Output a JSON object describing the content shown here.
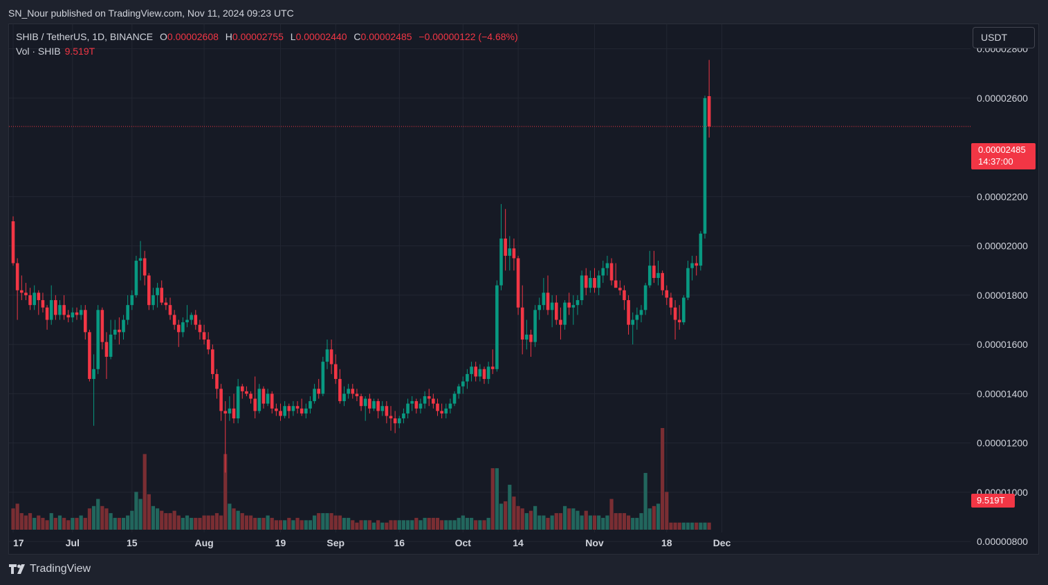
{
  "header": {
    "credit": "SN_Nour published on TradingView.com, Nov 11, 2024 09:23 UTC"
  },
  "legend": {
    "symbol": "SHIB / TetherUS, 1D, BINANCE",
    "open_label": "O",
    "open": "0.00002608",
    "high_label": "H",
    "high": "0.00002755",
    "low_label": "L",
    "low": "0.00002440",
    "close_label": "C",
    "close": "0.00002485",
    "change": "−0.00000122 (−4.68%)",
    "volume_label": "Vol · SHIB",
    "volume": "9.519T"
  },
  "currency_button": "USDT",
  "last_price": {
    "price": "0.00002485",
    "countdown": "14:37:00"
  },
  "volume_tag": "9.519T",
  "brand": "TradingView",
  "colors": {
    "up": "#089981",
    "down": "#f23645",
    "up_vol": "#22665d",
    "down_vol": "#7a2e33",
    "background": "#161a25",
    "grid": "#232733"
  },
  "chart_data": {
    "type": "candlestick",
    "title": "SHIB / TetherUS, 1D, BINANCE",
    "y_axis": {
      "ticks": [
        "0.00002800",
        "0.00002600",
        "0.00002200",
        "0.00002000",
        "0.00001800",
        "0.00001600",
        "0.00001400",
        "0.00001200",
        "0.00001000",
        "0.00000800"
      ],
      "range": [
        7.5e-06,
        2.9e-05
      ]
    },
    "x_axis": {
      "ticks": [
        {
          "label": "17",
          "day": 0
        },
        {
          "label": "Jul",
          "day": 14
        },
        {
          "label": "15",
          "day": 28
        },
        {
          "label": "Aug",
          "day": 45
        },
        {
          "label": "19",
          "day": 63
        },
        {
          "label": "Sep",
          "day": 76
        },
        {
          "label": "16",
          "day": 91
        },
        {
          "label": "Oct",
          "day": 106
        },
        {
          "label": "14",
          "day": 119
        },
        {
          "label": "Nov",
          "day": 137
        },
        {
          "label": "18",
          "day": 154
        },
        {
          "label": "Dec",
          "day": 167
        }
      ],
      "first_date": "2024-06-17"
    },
    "candles": [
      [
        2.1e-05,
        2.12e-05,
        1.92e-05,
        1.93e-05
      ],
      [
        1.93e-05,
        1.95e-05,
        1.7e-05,
        1.82e-05
      ],
      [
        1.82e-05,
        1.88e-05,
        1.78e-05,
        1.81e-05
      ],
      [
        1.81e-05,
        1.85e-05,
        1.78e-05,
        1.8e-05
      ],
      [
        1.8e-05,
        1.83e-05,
        1.74e-05,
        1.76e-05
      ],
      [
        1.76e-05,
        1.84e-05,
        1.74e-05,
        1.81e-05
      ],
      [
        1.81e-05,
        1.82e-05,
        1.72e-05,
        1.78e-05
      ],
      [
        1.78e-05,
        1.81e-05,
        1.73e-05,
        1.75e-05
      ],
      [
        1.75e-05,
        1.76e-05,
        1.66e-05,
        1.7e-05
      ],
      [
        1.7e-05,
        1.84e-05,
        1.68e-05,
        1.78e-05
      ],
      [
        1.78e-05,
        1.8e-05,
        1.7e-05,
        1.72e-05
      ],
      [
        1.72e-05,
        1.78e-05,
        1.7e-05,
        1.76e-05
      ],
      [
        1.76e-05,
        1.8e-05,
        1.7e-05,
        1.72e-05
      ],
      [
        1.72e-05,
        1.74e-05,
        1.69e-05,
        1.71e-05
      ],
      [
        1.71e-05,
        1.75e-05,
        1.69e-05,
        1.73e-05
      ],
      [
        1.73e-05,
        1.75e-05,
        1.7e-05,
        1.72e-05
      ],
      [
        1.72e-05,
        1.76e-05,
        1.7e-05,
        1.74e-05
      ],
      [
        1.74e-05,
        1.76e-05,
        1.62e-05,
        1.65e-05
      ],
      [
        1.65e-05,
        1.66e-05,
        1.45e-05,
        1.46e-05
      ],
      [
        1.46e-05,
        1.56e-05,
        1.27e-05,
        1.5e-05
      ],
      [
        1.5e-05,
        1.76e-05,
        1.48e-05,
        1.74e-05
      ],
      [
        1.74e-05,
        1.75e-05,
        1.58e-05,
        1.61e-05
      ],
      [
        1.61e-05,
        1.65e-05,
        1.46e-05,
        1.55e-05
      ],
      [
        1.55e-05,
        1.7e-05,
        1.54e-05,
        1.64e-05
      ],
      [
        1.64e-05,
        1.7e-05,
        1.62e-05,
        1.66e-05
      ],
      [
        1.66e-05,
        1.71e-05,
        1.6e-05,
        1.65e-05
      ],
      [
        1.65e-05,
        1.72e-05,
        1.62e-05,
        1.7e-05
      ],
      [
        1.7e-05,
        1.8e-05,
        1.68e-05,
        1.76e-05
      ],
      [
        1.76e-05,
        1.82e-05,
        1.74e-05,
        1.8e-05
      ],
      [
        1.8e-05,
        1.96e-05,
        1.79e-05,
        1.94e-05
      ],
      [
        1.94e-05,
        2.02e-05,
        1.86e-05,
        1.95e-05
      ],
      [
        1.95e-05,
        1.98e-05,
        1.84e-05,
        1.88e-05
      ],
      [
        1.88e-05,
        1.89e-05,
        1.74e-05,
        1.76e-05
      ],
      [
        1.76e-05,
        1.83e-05,
        1.74e-05,
        1.8e-05
      ],
      [
        1.8e-05,
        1.85e-05,
        1.75e-05,
        1.83e-05
      ],
      [
        1.83e-05,
        1.86e-05,
        1.76e-05,
        1.77e-05
      ],
      [
        1.77e-05,
        1.79e-05,
        1.74e-05,
        1.76e-05
      ],
      [
        1.76e-05,
        1.79e-05,
        1.7e-05,
        1.72e-05
      ],
      [
        1.72e-05,
        1.74e-05,
        1.66e-05,
        1.68e-05
      ],
      [
        1.68e-05,
        1.7e-05,
        1.59e-05,
        1.65e-05
      ],
      [
        1.65e-05,
        1.71e-05,
        1.63e-05,
        1.69e-05
      ],
      [
        1.69e-05,
        1.76e-05,
        1.67e-05,
        1.7e-05
      ],
      [
        1.7e-05,
        1.73e-05,
        1.68e-05,
        1.72e-05
      ],
      [
        1.72e-05,
        1.74e-05,
        1.66e-05,
        1.68e-05
      ],
      [
        1.68e-05,
        1.7e-05,
        1.62e-05,
        1.65e-05
      ],
      [
        1.65e-05,
        1.68e-05,
        1.6e-05,
        1.62e-05
      ],
      [
        1.62e-05,
        1.65e-05,
        1.56e-05,
        1.58e-05
      ],
      [
        1.58e-05,
        1.6e-05,
        1.46e-05,
        1.48e-05
      ],
      [
        1.48e-05,
        1.5e-05,
        1.38e-05,
        1.42e-05
      ],
      [
        1.42e-05,
        1.44e-05,
        1.29e-05,
        1.33e-05
      ],
      [
        1.33e-05,
        1.37e-05,
        1.08e-05,
        1.32e-05
      ],
      [
        1.32e-05,
        1.39e-05,
        1.29e-05,
        1.34e-05
      ],
      [
        1.34e-05,
        1.4e-05,
        1.28e-05,
        1.3e-05
      ],
      [
        1.3e-05,
        1.46e-05,
        1.28e-05,
        1.43e-05
      ],
      [
        1.43e-05,
        1.44e-05,
        1.38e-05,
        1.41e-05
      ],
      [
        1.41e-05,
        1.43e-05,
        1.39e-05,
        1.4e-05
      ],
      [
        1.4e-05,
        1.41e-05,
        1.36e-05,
        1.38e-05
      ],
      [
        1.38e-05,
        1.47e-05,
        1.3e-05,
        1.33e-05
      ],
      [
        1.33e-05,
        1.44e-05,
        1.32e-05,
        1.42e-05
      ],
      [
        1.42e-05,
        1.43e-05,
        1.34e-05,
        1.36e-05
      ],
      [
        1.36e-05,
        1.42e-05,
        1.35e-05,
        1.4e-05
      ],
      [
        1.4e-05,
        1.41e-05,
        1.32e-05,
        1.34e-05
      ],
      [
        1.34e-05,
        1.36e-05,
        1.31e-05,
        1.33e-05
      ],
      [
        1.33e-05,
        1.36e-05,
        1.29e-05,
        1.31e-05
      ],
      [
        1.31e-05,
        1.37e-05,
        1.3e-05,
        1.35e-05
      ],
      [
        1.35e-05,
        1.36e-05,
        1.3e-05,
        1.33e-05
      ],
      [
        1.33e-05,
        1.37e-05,
        1.31e-05,
        1.35e-05
      ],
      [
        1.35e-05,
        1.37e-05,
        1.32e-05,
        1.34e-05
      ],
      [
        1.34e-05,
        1.38e-05,
        1.31e-05,
        1.32e-05
      ],
      [
        1.32e-05,
        1.36e-05,
        1.3e-05,
        1.34e-05
      ],
      [
        1.34e-05,
        1.39e-05,
        1.32e-05,
        1.37e-05
      ],
      [
        1.37e-05,
        1.44e-05,
        1.36e-05,
        1.42e-05
      ],
      [
        1.42e-05,
        1.46e-05,
        1.38e-05,
        1.4e-05
      ],
      [
        1.4e-05,
        1.55e-05,
        1.39e-05,
        1.53e-05
      ],
      [
        1.53e-05,
        1.62e-05,
        1.5e-05,
        1.58e-05
      ],
      [
        1.58e-05,
        1.62e-05,
        1.48e-05,
        1.52e-05
      ],
      [
        1.52e-05,
        1.56e-05,
        1.44e-05,
        1.46e-05
      ],
      [
        1.46e-05,
        1.5e-05,
        1.36e-05,
        1.37e-05
      ],
      [
        1.37e-05,
        1.43e-05,
        1.35e-05,
        1.4e-05
      ],
      [
        1.4e-05,
        1.44e-05,
        1.38e-05,
        1.42e-05
      ],
      [
        1.42e-05,
        1.44e-05,
        1.38e-05,
        1.4e-05
      ],
      [
        1.4e-05,
        1.42e-05,
        1.37e-05,
        1.39e-05
      ],
      [
        1.39e-05,
        1.4e-05,
        1.33e-05,
        1.35e-05
      ],
      [
        1.35e-05,
        1.39e-05,
        1.29e-05,
        1.38e-05
      ],
      [
        1.38e-05,
        1.4e-05,
        1.32e-05,
        1.34e-05
      ],
      [
        1.34e-05,
        1.38e-05,
        1.33e-05,
        1.37e-05
      ],
      [
        1.37e-05,
        1.38e-05,
        1.3e-05,
        1.33e-05
      ],
      [
        1.33e-05,
        1.37e-05,
        1.31e-05,
        1.35e-05
      ],
      [
        1.35e-05,
        1.37e-05,
        1.28e-05,
        1.31e-05
      ],
      [
        1.31e-05,
        1.35e-05,
        1.25e-05,
        1.3e-05
      ],
      [
        1.3e-05,
        1.33e-05,
        1.24e-05,
        1.28e-05
      ],
      [
        1.28e-05,
        1.31e-05,
        1.26e-05,
        1.3e-05
      ],
      [
        1.3e-05,
        1.34e-05,
        1.28e-05,
        1.32e-05
      ],
      [
        1.32e-05,
        1.38e-05,
        1.3e-05,
        1.36e-05
      ],
      [
        1.36e-05,
        1.39e-05,
        1.33e-05,
        1.37e-05
      ],
      [
        1.37e-05,
        1.38e-05,
        1.32e-05,
        1.34e-05
      ],
      [
        1.34e-05,
        1.38e-05,
        1.32e-05,
        1.36e-05
      ],
      [
        1.36e-05,
        1.41e-05,
        1.34e-05,
        1.39e-05
      ],
      [
        1.39e-05,
        1.42e-05,
        1.35e-05,
        1.38e-05
      ],
      [
        1.38e-05,
        1.4e-05,
        1.34e-05,
        1.36e-05
      ],
      [
        1.36e-05,
        1.38e-05,
        1.31e-05,
        1.33e-05
      ],
      [
        1.33e-05,
        1.36e-05,
        1.3e-05,
        1.32e-05
      ],
      [
        1.32e-05,
        1.36e-05,
        1.3e-05,
        1.34e-05
      ],
      [
        1.34e-05,
        1.38e-05,
        1.32e-05,
        1.36e-05
      ],
      [
        1.36e-05,
        1.41e-05,
        1.35e-05,
        1.4e-05
      ],
      [
        1.4e-05,
        1.44e-05,
        1.38e-05,
        1.43e-05
      ],
      [
        1.43e-05,
        1.47e-05,
        1.4e-05,
        1.45e-05
      ],
      [
        1.45e-05,
        1.5e-05,
        1.42e-05,
        1.48e-05
      ],
      [
        1.48e-05,
        1.53e-05,
        1.45e-05,
        1.51e-05
      ],
      [
        1.51e-05,
        1.53e-05,
        1.45e-05,
        1.47e-05
      ],
      [
        1.47e-05,
        1.52e-05,
        1.45e-05,
        1.5e-05
      ],
      [
        1.5e-05,
        1.51e-05,
        1.44e-05,
        1.46e-05
      ],
      [
        1.46e-05,
        1.53e-05,
        1.44e-05,
        1.51e-05
      ],
      [
        1.51e-05,
        1.58e-05,
        1.48e-05,
        1.5e-05
      ],
      [
        1.5e-05,
        1.86e-05,
        1.49e-05,
        1.84e-05
      ],
      [
        1.84e-05,
        2.17e-05,
        1.82e-05,
        2.03e-05
      ],
      [
        2.03e-05,
        2.15e-05,
        1.9e-05,
        1.96e-05
      ],
      [
        1.96e-05,
        2.04e-05,
        1.9e-05,
        1.99e-05
      ],
      [
        1.99e-05,
        2.03e-05,
        1.9e-05,
        1.95e-05
      ],
      [
        1.95e-05,
        1.96e-05,
        1.72e-05,
        1.75e-05
      ],
      [
        1.75e-05,
        1.84e-05,
        1.56e-05,
        1.62e-05
      ],
      [
        1.62e-05,
        1.7e-05,
        1.58e-05,
        1.64e-05
      ],
      [
        1.64e-05,
        1.66e-05,
        1.55e-05,
        1.61e-05
      ],
      [
        1.61e-05,
        1.76e-05,
        1.59e-05,
        1.74e-05
      ],
      [
        1.74e-05,
        1.79e-05,
        1.7e-05,
        1.76e-05
      ],
      [
        1.76e-05,
        1.87e-05,
        1.74e-05,
        1.81e-05
      ],
      [
        1.81e-05,
        1.88e-05,
        1.72e-05,
        1.74e-05
      ],
      [
        1.74e-05,
        1.8e-05,
        1.67e-05,
        1.77e-05
      ],
      [
        1.77e-05,
        1.8e-05,
        1.68e-05,
        1.7e-05
      ],
      [
        1.7e-05,
        1.75e-05,
        1.62e-05,
        1.68e-05
      ],
      [
        1.68e-05,
        1.78e-05,
        1.66e-05,
        1.77e-05
      ],
      [
        1.77e-05,
        1.81e-05,
        1.72e-05,
        1.75e-05
      ],
      [
        1.75e-05,
        1.8e-05,
        1.68e-05,
        1.76e-05
      ],
      [
        1.76e-05,
        1.8e-05,
        1.72e-05,
        1.78e-05
      ],
      [
        1.78e-05,
        1.9e-05,
        1.76e-05,
        1.88e-05
      ],
      [
        1.88e-05,
        1.91e-05,
        1.8e-05,
        1.83e-05
      ],
      [
        1.83e-05,
        1.9e-05,
        1.81e-05,
        1.87e-05
      ],
      [
        1.87e-05,
        1.91e-05,
        1.81e-05,
        1.83e-05
      ],
      [
        1.83e-05,
        1.9e-05,
        1.8e-05,
        1.88e-05
      ],
      [
        1.88e-05,
        1.94e-05,
        1.85e-05,
        1.91e-05
      ],
      [
        1.91e-05,
        1.96e-05,
        1.88e-05,
        1.93e-05
      ],
      [
        1.93e-05,
        1.95e-05,
        1.84e-05,
        1.86e-05
      ],
      [
        1.86e-05,
        1.93e-05,
        1.84e-05,
        1.83e-05
      ],
      [
        1.83e-05,
        1.86e-05,
        1.8e-05,
        1.82e-05
      ],
      [
        1.82e-05,
        1.84e-05,
        1.74e-05,
        1.78e-05
      ],
      [
        1.78e-05,
        1.8e-05,
        1.64e-05,
        1.68e-05
      ],
      [
        1.68e-05,
        1.73e-05,
        1.6e-05,
        1.7e-05
      ],
      [
        1.7e-05,
        1.75e-05,
        1.66e-05,
        1.72e-05
      ],
      [
        1.72e-05,
        1.76e-05,
        1.69e-05,
        1.74e-05
      ],
      [
        1.74e-05,
        1.85e-05,
        1.72e-05,
        1.84e-05
      ],
      [
        1.84e-05,
        1.98e-05,
        1.83e-05,
        1.92e-05
      ],
      [
        1.92e-05,
        1.98e-05,
        1.85e-05,
        1.87e-05
      ],
      [
        1.87e-05,
        1.94e-05,
        1.84e-05,
        1.89e-05
      ],
      [
        1.89e-05,
        1.9e-05,
        1.8e-05,
        1.82e-05
      ],
      [
        1.82e-05,
        1.84e-05,
        1.76e-05,
        1.79e-05
      ],
      [
        1.79e-05,
        1.81e-05,
        1.72e-05,
        1.75e-05
      ],
      [
        1.75e-05,
        1.78e-05,
        1.62e-05,
        1.7e-05
      ],
      [
        1.7e-05,
        1.76e-05,
        1.66e-05,
        1.69e-05
      ],
      [
        1.69e-05,
        1.8e-05,
        1.68e-05,
        1.79e-05
      ],
      [
        1.79e-05,
        1.94e-05,
        1.78e-05,
        1.91e-05
      ],
      [
        1.91e-05,
        1.96e-05,
        1.86e-05,
        1.93e-05
      ],
      [
        1.93e-05,
        1.96e-05,
        1.88e-05,
        1.92e-05
      ],
      [
        1.92e-05,
        2.06e-05,
        1.9e-05,
        2.05e-05
      ],
      [
        2.05e-05,
        2.61e-05,
        2.03e-05,
        2.6e-05
      ],
      [
        2.608e-05,
        2.755e-05,
        2.44e-05,
        2.485e-05
      ]
    ],
    "volume": [
      0.9,
      1.1,
      0.7,
      0.6,
      0.7,
      0.5,
      0.6,
      0.5,
      0.4,
      0.7,
      0.5,
      0.6,
      0.5,
      0.4,
      0.5,
      0.5,
      0.6,
      0.5,
      0.9,
      1.0,
      1.3,
      1.0,
      0.9,
      0.7,
      0.5,
      0.5,
      0.5,
      0.6,
      0.8,
      1.6,
      1.3,
      3.2,
      1.5,
      1.0,
      0.9,
      0.8,
      0.7,
      0.7,
      0.8,
      0.6,
      0.5,
      0.6,
      0.5,
      0.5,
      0.5,
      0.6,
      0.6,
      0.6,
      0.7,
      0.6,
      3.2,
      1.1,
      0.9,
      0.8,
      0.7,
      0.6,
      0.6,
      0.5,
      0.5,
      0.5,
      0.6,
      0.5,
      0.4,
      0.4,
      0.4,
      0.5,
      0.4,
      0.5,
      0.4,
      0.4,
      0.4,
      0.6,
      0.7,
      0.7,
      0.7,
      0.7,
      0.6,
      0.6,
      0.5,
      0.5,
      0.4,
      0.3,
      0.4,
      0.4,
      0.4,
      0.3,
      0.4,
      0.3,
      0.3,
      0.4,
      0.4,
      0.4,
      0.4,
      0.4,
      0.4,
      0.5,
      0.4,
      0.5,
      0.5,
      0.5,
      0.5,
      0.4,
      0.4,
      0.4,
      0.4,
      0.5,
      0.6,
      0.5,
      0.5,
      0.4,
      0.4,
      0.4,
      0.5,
      2.6,
      2.6,
      1.1,
      1.2,
      1.9,
      1.4,
      1.0,
      0.9,
      0.7,
      0.8,
      1.0,
      0.6,
      0.6,
      0.5,
      0.6,
      0.7,
      0.7,
      1.0,
      0.9,
      0.9,
      0.8,
      0.6,
      0.8,
      0.6,
      0.6,
      0.6,
      0.5,
      0.6,
      1.3,
      0.7,
      0.7,
      0.7,
      0.6,
      0.5,
      0.5,
      0.7,
      2.4,
      0.9,
      1.0,
      1.1,
      4.3,
      1.6
    ]
  }
}
